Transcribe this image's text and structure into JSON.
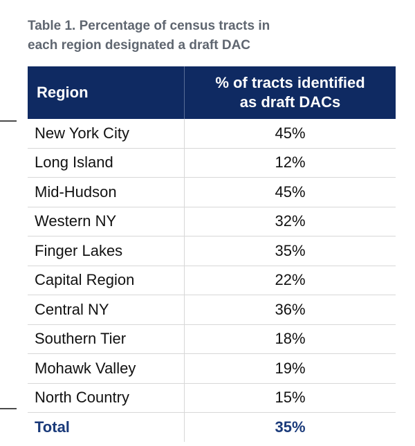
{
  "caption": {
    "line1": "Table 1. Percentage of census tracts in",
    "line2": "each region designated a draft DAC"
  },
  "table": {
    "headers": {
      "region": "Region",
      "pct_line1": "% of tracts identified",
      "pct_line2": "as draft DACs"
    },
    "rows": [
      {
        "region": "New York City",
        "pct": "45%"
      },
      {
        "region": "Long Island",
        "pct": "12%"
      },
      {
        "region": "Mid-Hudson",
        "pct": "45%"
      },
      {
        "region": "Western NY",
        "pct": "32%"
      },
      {
        "region": "Finger Lakes",
        "pct": "35%"
      },
      {
        "region": "Capital Region",
        "pct": "22%"
      },
      {
        "region": "Central NY",
        "pct": "36%"
      },
      {
        "region": "Southern Tier",
        "pct": "18%"
      },
      {
        "region": "Mohawk Valley",
        "pct": "19%"
      },
      {
        "region": "North Country",
        "pct": "15%"
      }
    ],
    "total": {
      "region": "Total",
      "pct": "35%"
    }
  },
  "colors": {
    "header_bg": "#0f2a62",
    "total_text": "#1a3a7a",
    "caption_text": "#5f6670"
  }
}
